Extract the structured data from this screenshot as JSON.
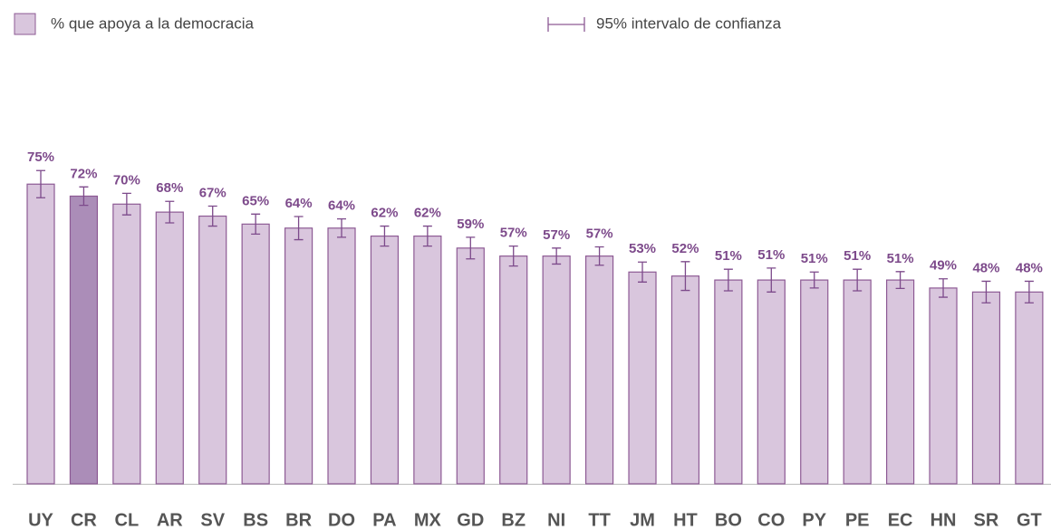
{
  "chart_data": {
    "type": "bar",
    "categories": [
      "UY",
      "CR",
      "CL",
      "AR",
      "SV",
      "BS",
      "BR",
      "DO",
      "PA",
      "MX",
      "GD",
      "BZ",
      "NI",
      "TT",
      "JM",
      "HT",
      "BO",
      "CO",
      "PY",
      "PE",
      "EC",
      "HN",
      "SR",
      "GT"
    ],
    "series": [
      {
        "name": "% que apoya a la democracia",
        "color": "#d9c6dd",
        "values": [
          75,
          72,
          70,
          68,
          67,
          65,
          64,
          64,
          62,
          62,
          59,
          57,
          57,
          57,
          53,
          52,
          51,
          51,
          51,
          51,
          51,
          49,
          48,
          48
        ],
        "value_labels": [
          "75%",
          "72%",
          "70%",
          "68%",
          "67%",
          "65%",
          "64%",
          "64%",
          "62%",
          "62%",
          "59%",
          "57%",
          "57%",
          "57%",
          "53%",
          "52%",
          "51%",
          "51%",
          "51%",
          "51%",
          "51%",
          "49%",
          "48%",
          "48%"
        ],
        "errors": [
          3.4,
          2.3,
          2.7,
          2.7,
          2.5,
          2.5,
          2.9,
          2.3,
          2.5,
          2.5,
          2.7,
          2.5,
          2.0,
          2.3,
          2.5,
          3.6,
          2.7,
          3.0,
          2.0,
          2.7,
          2.1,
          2.3,
          2.7,
          2.7
        ]
      }
    ],
    "colors": [
      "#d9c6dd",
      "#ab8db8",
      "#d9c6dd",
      "#d9c6dd",
      "#d9c6dd",
      "#d9c6dd",
      "#d9c6dd",
      "#d9c6dd",
      "#d9c6dd",
      "#d9c6dd",
      "#d9c6dd",
      "#d9c6dd",
      "#d9c6dd",
      "#d9c6dd",
      "#d9c6dd",
      "#d9c6dd",
      "#d9c6dd",
      "#d9c6dd",
      "#d9c6dd",
      "#d9c6dd",
      "#d9c6dd",
      "#d9c6dd",
      "#d9c6dd",
      "#d9c6dd"
    ],
    "error_legend": "95% intervalo de confianza",
    "ylim": [
      0,
      100
    ]
  }
}
